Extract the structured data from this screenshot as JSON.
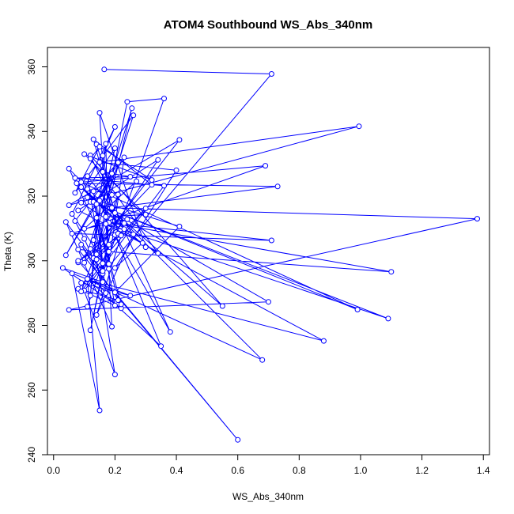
{
  "chart_data": {
    "type": "line",
    "title": "ATOM4 Southbound WS_Abs_340nm",
    "xlabel": "WS_Abs_340nm",
    "ylabel": "Theta (K)",
    "xlim": [
      -0.02,
      1.42
    ],
    "ylim": [
      240,
      366
    ],
    "xticks": [
      0.0,
      0.2,
      0.4,
      0.6,
      0.8,
      1.0,
      1.2,
      1.4
    ],
    "xtick_labels": [
      "0.0",
      "0.2",
      "0.4",
      "0.6",
      "0.8",
      "1.0",
      "1.2",
      "1.4"
    ],
    "yticks": [
      240,
      260,
      280,
      300,
      320,
      340,
      360
    ],
    "ytick_labels": [
      "240",
      "260",
      "280",
      "300",
      "320",
      "340",
      "360"
    ],
    "grid": false,
    "marker": "open-circle",
    "series_color": "#0000ff",
    "series": [
      {
        "x": [
          0.165,
          0.71,
          0.16,
          0.36,
          0.24,
          0.14,
          0.255,
          0.1,
          0.41,
          0.05,
          0.995,
          0.15,
          0.4,
          0.2,
          0.29,
          0.08,
          0.34,
          0.13,
          0.23,
          0.075,
          0.73,
          0.19,
          1.38,
          0.05,
          0.7,
          0.11,
          0.41,
          0.2,
          0.6,
          0.08,
          1.1,
          0.18,
          0.71,
          0.06,
          0.69,
          0.09,
          0.99,
          0.12,
          1.09,
          0.17,
          0.88,
          0.11,
          0.68,
          0.2,
          0.55,
          0.12,
          0.38,
          0.2,
          0.35,
          0.11,
          0.15,
          0.06,
          0.25,
          0.09,
          0.2,
          0.14,
          0.3,
          0.08,
          0.22,
          0.03,
          0.16,
          0.09,
          0.22,
          0.13,
          0.21,
          0.1,
          0.36,
          0.07,
          0.25,
          0.16,
          0.18,
          0.05,
          0.15,
          0.17,
          0.3,
          0.1,
          0.32,
          0.14,
          0.19,
          0.11,
          0.2,
          0.13,
          0.26,
          0.07,
          0.15,
          0.12,
          0.34,
          0.09,
          0.21,
          0.04,
          0.23,
          0.18,
          0.17,
          0.12,
          0.14,
          0.27,
          0.1,
          0.24,
          0.08,
          0.32,
          0.13,
          0.21,
          0.16,
          0.2,
          0.06,
          0.18,
          0.12,
          0.23,
          0.09,
          0.3,
          0.15,
          0.19,
          0.04,
          0.16,
          0.11,
          0.26,
          0.14,
          0.22,
          0.08,
          0.17,
          0.13,
          0.2,
          0.1,
          0.07,
          0.19,
          0.14,
          0.16,
          0.09,
          0.21,
          0.12,
          0.18,
          0.11
        ],
        "y": [
          359.2,
          357.8,
          296.0,
          350.2,
          349.2,
          302.0,
          347.2,
          299.4,
          337.4,
          317.2,
          341.6,
          330.5,
          328.0,
          297.8,
          305.5,
          315.6,
          331.2,
          300.8,
          309.8,
          324.0,
          323.0,
          316.4,
          313.0,
          284.8,
          287.3,
          319.6,
          310.6,
          290.2,
          244.6,
          303.5,
          296.6,
          311.8,
          306.3,
          308.4,
          329.4,
          324.3,
          284.9,
          318.2,
          282.1,
          311.4,
          275.2,
          294.2,
          269.3,
          314.8,
          286.0,
          332.6,
          278.0,
          308.0,
          273.6,
          294.4,
          253.7,
          296.1,
          289.2,
          293.2,
          264.8,
          300.4,
          316.2,
          291.3,
          285.3,
          297.8,
          293.4,
          305.0,
          286.5,
          318.2,
          287.8,
          290.8,
          323.2,
          325.6,
          326.0,
          327.5,
          302.8,
          328.5,
          318.6,
          313.6,
          314.3,
          333.0,
          325.0,
          336.0,
          320.4,
          322.2,
          334.8,
          306.4,
          345.0,
          321.0,
          335.3,
          331.6,
          302.3,
          318.0,
          330.4,
          301.7,
          332.0,
          299.0,
          336.2,
          289.2,
          313.3,
          324.6,
          309.9,
          312.8,
          299.5,
          323.5,
          337.6,
          308.4,
          332.5,
          341.4,
          314.5,
          297.5,
          303.7,
          311.6,
          322.8,
          304.2,
          345.8,
          279.6,
          312.0,
          296.8,
          326.2,
          308.2,
          283.2,
          307.8,
          300.0,
          290.0,
          321.5,
          286.2,
          306.8,
          312.3,
          327.0,
          317.5,
          299.2,
          290.5,
          320.5,
          278.5,
          305.0,
          285.8
        ]
      }
    ]
  }
}
